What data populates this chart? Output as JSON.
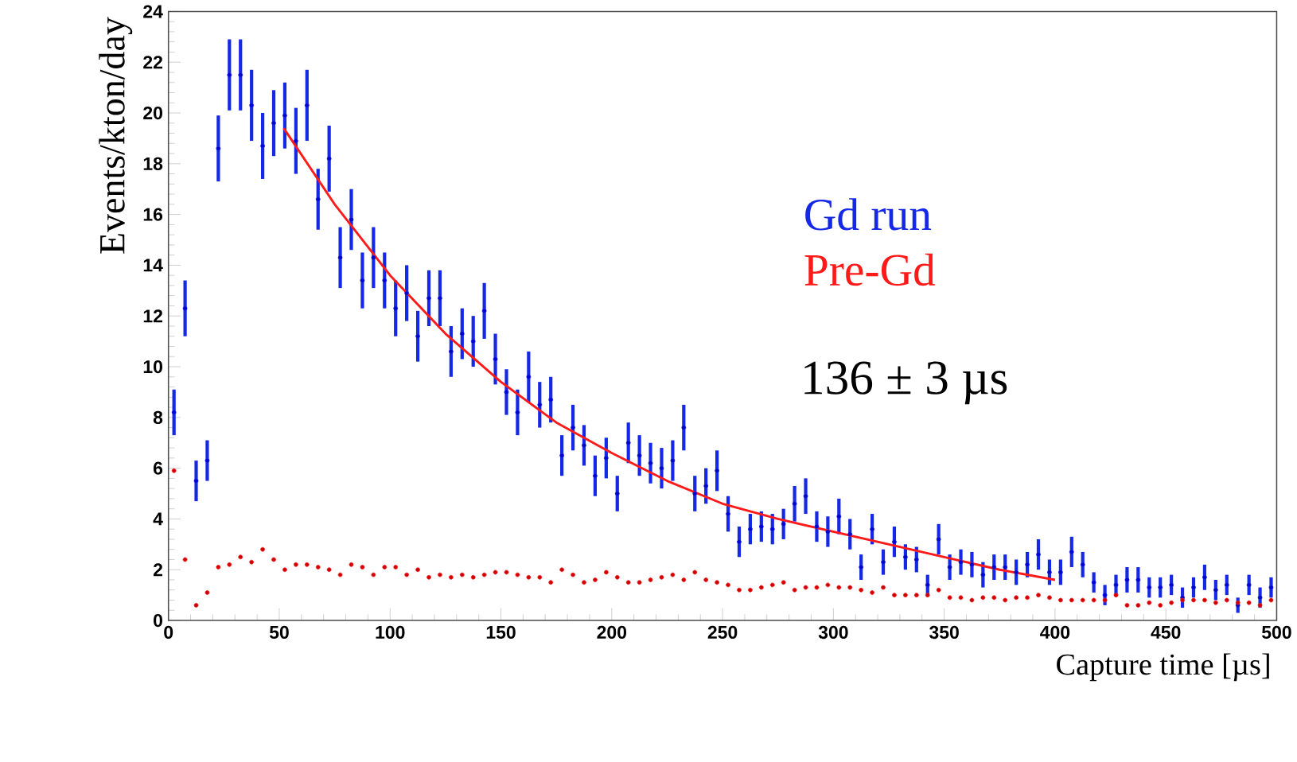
{
  "chart_data": {
    "type": "scatter",
    "xlabel": "Capture time  [µs]",
    "ylabel": "Events/kton/day",
    "xlim": [
      0,
      500
    ],
    "ylim": [
      0,
      24
    ],
    "xticks": [
      0,
      50,
      100,
      150,
      200,
      250,
      300,
      350,
      400,
      450,
      500
    ],
    "yticks": [
      0,
      2,
      4,
      6,
      8,
      10,
      12,
      14,
      16,
      18,
      20,
      22,
      24
    ],
    "legend": "right",
    "marker": "circle",
    "annotations": [
      "136 ± 3 µs"
    ],
    "x": [
      2.5,
      7.5,
      12.5,
      17.5,
      22.5,
      27.5,
      32.5,
      37.5,
      42.5,
      47.5,
      52.5,
      57.5,
      62.5,
      67.5,
      72.5,
      77.5,
      82.5,
      87.5,
      92.5,
      97.5,
      102.5,
      107.5,
      112.5,
      117.5,
      122.5,
      127.5,
      132.5,
      137.5,
      142.5,
      147.5,
      152.5,
      157.5,
      162.5,
      167.5,
      172.5,
      177.5,
      182.5,
      187.5,
      192.5,
      197.5,
      202.5,
      207.5,
      212.5,
      217.5,
      222.5,
      227.5,
      232.5,
      237.5,
      242.5,
      247.5,
      252.5,
      257.5,
      262.5,
      267.5,
      272.5,
      277.5,
      282.5,
      287.5,
      292.5,
      297.5,
      302.5,
      307.5,
      312.5,
      317.5,
      322.5,
      327.5,
      332.5,
      337.5,
      342.5,
      347.5,
      352.5,
      357.5,
      362.5,
      367.5,
      372.5,
      377.5,
      382.5,
      387.5,
      392.5,
      397.5,
      402.5,
      407.5,
      412.5,
      417.5,
      422.5,
      427.5,
      432.5,
      437.5,
      442.5,
      447.5,
      452.5,
      457.5,
      462.5,
      467.5,
      472.5,
      477.5,
      482.5,
      487.5,
      492.5,
      497.5
    ],
    "series": [
      {
        "name": "Gd run",
        "color": "#1428e6",
        "values": [
          8.2,
          12.3,
          5.5,
          6.3,
          18.6,
          21.5,
          21.5,
          20.3,
          18.7,
          19.6,
          19.9,
          18.9,
          20.3,
          16.6,
          18.2,
          14.3,
          15.8,
          13.4,
          14.3,
          13.4,
          12.3,
          12.9,
          11.2,
          12.7,
          12.7,
          10.6,
          11.3,
          11.0,
          12.2,
          10.3,
          9.0,
          8.2,
          9.6,
          8.5,
          8.7,
          6.5,
          7.6,
          6.9,
          5.7,
          6.4,
          5.0,
          7.0,
          6.5,
          6.2,
          6.0,
          6.3,
          7.6,
          5.0,
          5.3,
          5.9,
          4.2,
          3.1,
          3.6,
          3.7,
          3.6,
          3.8,
          4.6,
          4.9,
          3.7,
          3.5,
          4.1,
          3.4,
          2.1,
          3.6,
          2.3,
          3.1,
          2.5,
          2.4,
          1.4,
          3.2,
          2.1,
          2.3,
          2.2,
          1.8,
          2.1,
          2.1,
          1.9,
          2.2,
          2.6,
          1.9,
          1.9,
          2.7,
          2.2,
          1.5,
          1.0,
          1.4,
          1.6,
          1.6,
          1.3,
          1.3,
          1.4,
          0.9,
          1.3,
          1.7,
          1.2,
          1.4,
          0.6,
          1.4,
          0.9,
          1.3
        ],
        "errors": [
          0.9,
          1.1,
          0.8,
          0.8,
          1.3,
          1.4,
          1.4,
          1.4,
          1.3,
          1.3,
          1.3,
          1.3,
          1.4,
          1.2,
          1.3,
          1.2,
          1.2,
          1.1,
          1.2,
          1.1,
          1.1,
          1.1,
          1.0,
          1.1,
          1.1,
          1.0,
          1.0,
          1.0,
          1.1,
          1.0,
          0.9,
          0.9,
          1.0,
          0.9,
          0.9,
          0.8,
          0.9,
          0.8,
          0.8,
          0.8,
          0.7,
          0.8,
          0.8,
          0.8,
          0.8,
          0.8,
          0.9,
          0.7,
          0.7,
          0.8,
          0.7,
          0.6,
          0.6,
          0.6,
          0.6,
          0.6,
          0.7,
          0.7,
          0.6,
          0.6,
          0.7,
          0.6,
          0.5,
          0.6,
          0.5,
          0.6,
          0.5,
          0.5,
          0.4,
          0.6,
          0.5,
          0.5,
          0.5,
          0.5,
          0.5,
          0.5,
          0.5,
          0.5,
          0.6,
          0.5,
          0.5,
          0.6,
          0.5,
          0.4,
          0.4,
          0.4,
          0.5,
          0.5,
          0.4,
          0.4,
          0.4,
          0.4,
          0.4,
          0.5,
          0.4,
          0.4,
          0.3,
          0.4,
          0.4,
          0.4
        ]
      },
      {
        "name": "Pre-Gd",
        "color": "#ff1a1a",
        "values": [
          5.9,
          2.4,
          0.6,
          1.1,
          2.1,
          2.2,
          2.5,
          2.3,
          2.8,
          2.4,
          2.0,
          2.2,
          2.2,
          2.1,
          2.0,
          1.8,
          2.2,
          2.1,
          1.8,
          2.1,
          2.1,
          1.8,
          2.0,
          1.7,
          1.8,
          1.7,
          1.8,
          1.7,
          1.8,
          1.9,
          1.9,
          1.8,
          1.7,
          1.7,
          1.5,
          2.0,
          1.8,
          1.5,
          1.6,
          1.9,
          1.7,
          1.5,
          1.5,
          1.6,
          1.7,
          1.8,
          1.6,
          1.9,
          1.6,
          1.5,
          1.4,
          1.2,
          1.2,
          1.3,
          1.4,
          1.5,
          1.2,
          1.3,
          1.3,
          1.4,
          1.3,
          1.3,
          1.2,
          1.1,
          1.3,
          1.0,
          1.0,
          1.0,
          1.0,
          1.2,
          0.9,
          0.9,
          0.8,
          0.9,
          0.9,
          0.8,
          0.9,
          0.9,
          1.0,
          0.9,
          0.8,
          0.8,
          0.8,
          0.8,
          0.8,
          1.0,
          0.6,
          0.6,
          0.7,
          0.6,
          0.7,
          0.8,
          0.8,
          0.8,
          0.7,
          0.8,
          0.7,
          0.7,
          0.6,
          0.8
        ]
      },
      {
        "type": "line",
        "color": "#ff1a1a",
        "line_style": "solid",
        "marker": "none",
        "x": [
          52,
          75,
          100,
          125,
          150,
          175,
          200,
          225,
          250,
          275,
          300,
          325,
          350,
          375,
          400
        ],
        "values": [
          19.4,
          16.4,
          13.6,
          11.3,
          9.4,
          7.8,
          6.6,
          5.5,
          4.6,
          4.0,
          3.5,
          3.0,
          2.5,
          2.0,
          1.6
        ]
      }
    ]
  }
}
